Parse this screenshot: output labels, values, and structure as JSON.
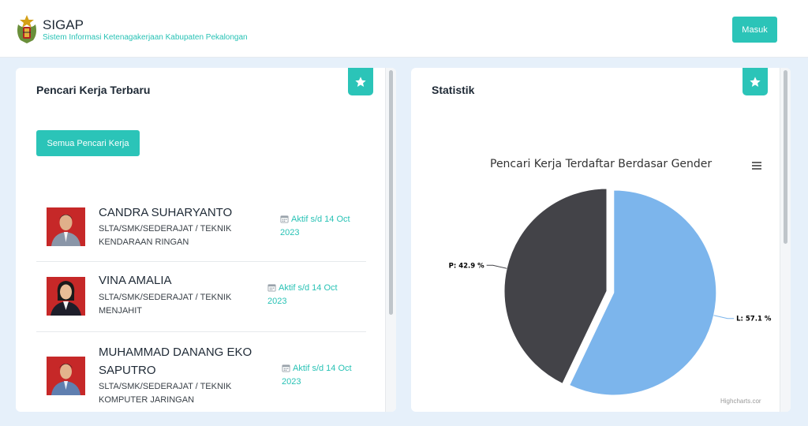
{
  "header": {
    "app_name": "SIGAP",
    "app_subtitle": "Sistem Informasi Ketenagakerjaan Kabupaten Pekalongan",
    "login_label": "Masuk"
  },
  "left_panel": {
    "title": "Pencari Kerja Terbaru",
    "all_button_label": "Semua Pencari Kerja",
    "seekers": [
      {
        "name": "CANDRA SUHARYANTO",
        "education": "SLTA/SMK/SEDERAJAT / TEKNIK KENDARAAN RINGAN",
        "status": "Aktif s/d 14 Oct 2023"
      },
      {
        "name": "VINA AMALIA",
        "education": "SLTA/SMK/SEDERAJAT / TEKNIK MENJAHIT",
        "status": "Aktif s/d 14 Oct 2023"
      },
      {
        "name": "MUHAMMAD DANANG EKO SAPUTRO",
        "education": "SLTA/SMK/SEDERAJAT / TEKNIK KOMPUTER JARINGAN",
        "status": "Aktif s/d 14 Oct 2023"
      }
    ]
  },
  "right_panel": {
    "title": "Statistik",
    "credits": "Highcharts.cor"
  },
  "chart_data": {
    "type": "pie",
    "title": "Pencari Kerja Terdaftar Berdasar Gender",
    "slices": [
      {
        "name": "L",
        "value": 57.1,
        "label": "L: 57.1 %",
        "color": "#7cb5ec"
      },
      {
        "name": "P",
        "value": 42.9,
        "label": "P: 42.9 %",
        "color": "#434348"
      }
    ]
  },
  "colors": {
    "accent": "#2bc4b8",
    "background": "#e6f0fa"
  }
}
